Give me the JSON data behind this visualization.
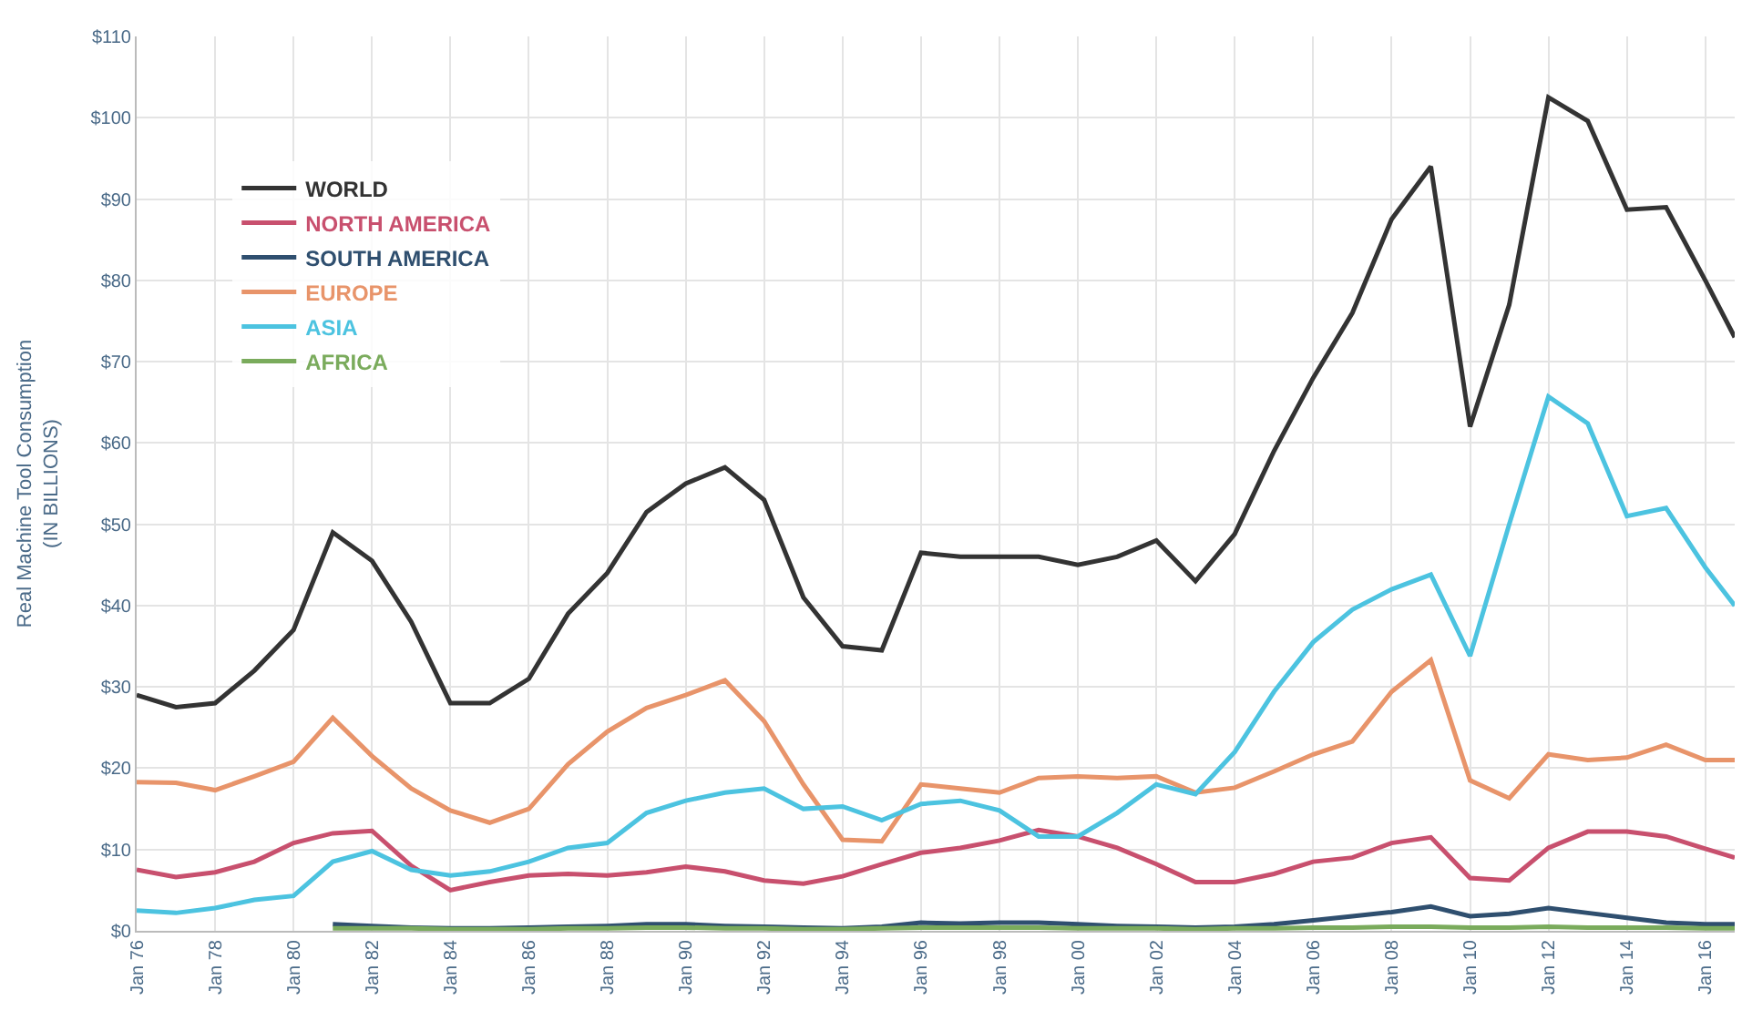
{
  "chart_data": {
    "type": "line",
    "ylabel": "Real Machine Tool Consumption\n(IN BILLIONS)",
    "xlim": [
      "1976-01",
      "2016-10"
    ],
    "ylim": [
      0,
      110
    ],
    "xticks": [
      {
        "value": "1976-01",
        "label": "Jan 76"
      },
      {
        "value": "1978-01",
        "label": "Jan 78"
      },
      {
        "value": "1980-01",
        "label": "Jan 80"
      },
      {
        "value": "1982-01",
        "label": "Jan 82"
      },
      {
        "value": "1984-01",
        "label": "Jan 84"
      },
      {
        "value": "1986-01",
        "label": "Jan 86"
      },
      {
        "value": "1988-01",
        "label": "Jan 88"
      },
      {
        "value": "1990-01",
        "label": "Jan 90"
      },
      {
        "value": "1992-01",
        "label": "Jan 92"
      },
      {
        "value": "1994-01",
        "label": "Jan 94"
      },
      {
        "value": "1996-01",
        "label": "Jan 96"
      },
      {
        "value": "1998-01",
        "label": "Jan 98"
      },
      {
        "value": "2000-01",
        "label": "Jan 00"
      },
      {
        "value": "2002-01",
        "label": "Jan 02"
      },
      {
        "value": "2004-01",
        "label": "Jan 04"
      },
      {
        "value": "2006-01",
        "label": "Jan 06"
      },
      {
        "value": "2008-01",
        "label": "Jan 08"
      },
      {
        "value": "2010-01",
        "label": "Jan 10"
      },
      {
        "value": "2012-01",
        "label": "Jan 12"
      },
      {
        "value": "2014-01",
        "label": "Jan 14"
      },
      {
        "value": "2016-01",
        "label": "Jan 16"
      }
    ],
    "yticks": [
      {
        "value": 0,
        "label": "$0"
      },
      {
        "value": 10,
        "label": "$10"
      },
      {
        "value": 20,
        "label": "$20"
      },
      {
        "value": 30,
        "label": "$30"
      },
      {
        "value": 40,
        "label": "$40"
      },
      {
        "value": 50,
        "label": "$50"
      },
      {
        "value": 60,
        "label": "$60"
      },
      {
        "value": 70,
        "label": "$70"
      },
      {
        "value": 80,
        "label": "$80"
      },
      {
        "value": 90,
        "label": "$90"
      },
      {
        "value": 100,
        "label": "$100"
      },
      {
        "value": 110,
        "label": "$110"
      }
    ],
    "x": [
      "1976-01",
      "1977-01",
      "1978-01",
      "1979-01",
      "1980-01",
      "1981-01",
      "1982-01",
      "1983-01",
      "1984-01",
      "1985-01",
      "1986-01",
      "1987-01",
      "1988-01",
      "1989-01",
      "1990-01",
      "1991-01",
      "1992-01",
      "1993-01",
      "1994-01",
      "1995-01",
      "1996-01",
      "1997-01",
      "1998-01",
      "1999-01",
      "2000-01",
      "2001-01",
      "2002-01",
      "2003-01",
      "2004-01",
      "2005-01",
      "2006-01",
      "2007-01",
      "2008-01",
      "2009-01",
      "2010-01",
      "2011-01",
      "2012-01",
      "2013-01",
      "2014-01",
      "2015-01",
      "2016-01",
      "2016-10"
    ],
    "series": [
      {
        "name": "WORLD",
        "color": "#333333",
        "values": [
          29,
          27.5,
          28,
          32,
          37,
          49,
          45.5,
          38,
          28,
          28,
          31,
          39,
          44,
          51.5,
          55,
          57,
          53,
          41,
          35,
          34.5,
          46.5,
          46,
          46,
          46,
          45,
          46,
          48,
          43,
          48.8,
          59,
          68,
          76,
          87.5,
          94,
          62,
          77,
          102.5,
          99.6,
          88.7,
          89,
          80,
          73
        ]
      },
      {
        "name": "NORTH AMERICA",
        "color": "#c8506e",
        "values": [
          7.5,
          6.6,
          7.2,
          8.5,
          10.8,
          12,
          12.3,
          8,
          5,
          6,
          6.8,
          7,
          6.8,
          7.2,
          7.9,
          7.3,
          6.2,
          5.8,
          6.7,
          8.2,
          9.6,
          10.2,
          11.1,
          12.4,
          11.6,
          10.2,
          8.2,
          6,
          6,
          7,
          8.5,
          9,
          10.8,
          11.5,
          6.5,
          6.2,
          10.2,
          12.2,
          12.2,
          11.6,
          10.1,
          9
        ]
      },
      {
        "name": "SOUTH AMERICA",
        "color": "#2f4f6f",
        "values": [
          null,
          null,
          null,
          null,
          null,
          0.8,
          0.6,
          0.4,
          0.3,
          0.3,
          0.4,
          0.5,
          0.6,
          0.8,
          0.8,
          0.6,
          0.5,
          0.4,
          0.3,
          0.5,
          1,
          0.9,
          1,
          1,
          0.8,
          0.6,
          0.5,
          0.4,
          0.5,
          0.8,
          1.3,
          1.8,
          2.3,
          3,
          1.8,
          2.1,
          2.8,
          2.2,
          1.6,
          1,
          0.8,
          0.8
        ]
      },
      {
        "name": "EUROPE",
        "color": "#e8946a",
        "values": [
          18.3,
          18.2,
          17.3,
          19,
          20.8,
          26.2,
          21.5,
          17.5,
          14.8,
          13.3,
          15,
          20.5,
          24.5,
          27.4,
          29,
          30.8,
          25.8,
          18,
          11.2,
          11,
          18,
          17.5,
          17,
          18.8,
          19,
          18.8,
          19,
          17,
          17.6,
          19.6,
          21.7,
          23.3,
          29.4,
          33.3,
          18.5,
          16.3,
          21.7,
          21,
          21.3,
          22.9,
          21,
          21
        ]
      },
      {
        "name": "ASIA",
        "color": "#4cc3e0",
        "values": [
          2.5,
          2.2,
          2.8,
          3.8,
          4.3,
          8.5,
          9.8,
          7.5,
          6.8,
          7.3,
          8.5,
          10.2,
          10.8,
          14.5,
          16,
          17,
          17.5,
          15,
          15.3,
          13.6,
          15.6,
          16,
          14.8,
          11.6,
          11.6,
          14.5,
          18,
          16.8,
          22,
          29.4,
          35.5,
          39.5,
          42,
          43.8,
          33.8,
          50,
          65.7,
          62.4,
          51,
          52,
          44.7,
          40
        ]
      },
      {
        "name": "AFRICA",
        "color": "#7aab5c",
        "values": [
          null,
          null,
          null,
          null,
          null,
          0.3,
          0.3,
          0.3,
          0.2,
          0.2,
          0.2,
          0.3,
          0.3,
          0.4,
          0.4,
          0.3,
          0.3,
          0.2,
          0.2,
          0.3,
          0.4,
          0.4,
          0.4,
          0.4,
          0.3,
          0.3,
          0.3,
          0.2,
          0.3,
          0.3,
          0.4,
          0.4,
          0.5,
          0.5,
          0.4,
          0.4,
          0.5,
          0.4,
          0.4,
          0.4,
          0.3,
          0.3
        ]
      }
    ],
    "grid": true,
    "legend": "top left",
    "line_style": "solid",
    "marker": "none"
  }
}
